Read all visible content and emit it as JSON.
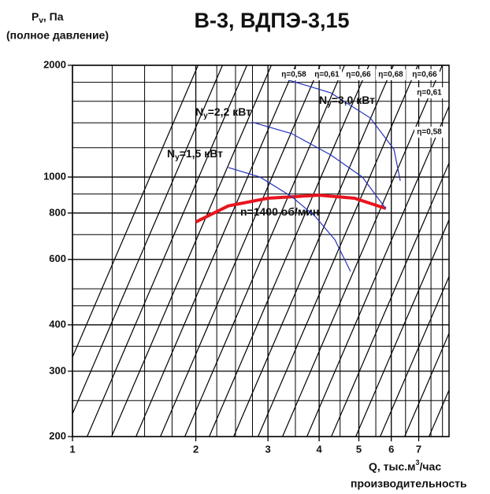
{
  "chart_data": {
    "type": "line",
    "title": "В-3, ВДПЭ-3,15",
    "y_label": [
      "P",
      "v",
      ", Па"
    ],
    "y_label_note": "(полное давление)",
    "x_label": [
      "Q, тыс.м",
      "3",
      "/час"
    ],
    "x_label_note": "производительность",
    "log_x": true,
    "log_y": true,
    "grid": true,
    "xlim": [
      1,
      8.3
    ],
    "ylim": [
      200,
      2000
    ],
    "xticks": [
      1,
      2,
      3,
      4,
      5,
      6,
      7
    ],
    "yticks": [
      200,
      300,
      400,
      600,
      800,
      1000,
      2000
    ],
    "minor_xticks": [
      1.25,
      1.5,
      1.75,
      2.25,
      2.5,
      2.75,
      3.5,
      4.5,
      5.5,
      6.5,
      7.5,
      8
    ],
    "minor_yticks": [
      250,
      350,
      450,
      500,
      700,
      900,
      1200,
      1400,
      1600,
      1800
    ],
    "series": [
      {
        "label": [
          "n=1400 об/мин"
        ],
        "color": "#e8141e",
        "width": 4,
        "x": [
          2.0,
          2.4,
          3.0,
          4.0,
          4.88,
          5.82
        ],
        "values": [
          757,
          836,
          877,
          894,
          877,
          823
        ]
      },
      {
        "label": [
          "N",
          "у",
          "=1,5 кВт"
        ],
        "color": "#2233bb",
        "width": 1.2,
        "x": [
          2.4,
          2.87,
          3.43,
          3.91,
          4.37,
          4.77
        ],
        "values": [
          1061,
          1000,
          885,
          784,
          678,
          557
        ]
      },
      {
        "label": [
          "N",
          "у",
          "=2,2 кВт"
        ],
        "color": "#2233bb",
        "width": 1.2,
        "x": [
          2.74,
          3.43,
          4.27,
          5.1,
          5.82
        ],
        "values": [
          1406,
          1309,
          1147,
          1000,
          822
        ]
      },
      {
        "label": [
          "N",
          "у",
          "=3,0 кВт"
        ],
        "color": "#2233bb",
        "width": 1.2,
        "x": [
          3.28,
          4.27,
          5.33,
          6.09,
          6.31
        ],
        "values": [
          1841,
          1685,
          1443,
          1187,
          977
        ]
      }
    ],
    "efficiency_labels": [
      "η=0,58",
      "η=0,61",
      "η=0,66",
      "η=0,68",
      "η=0,66",
      "η=0,61",
      "η=0,58"
    ]
  }
}
